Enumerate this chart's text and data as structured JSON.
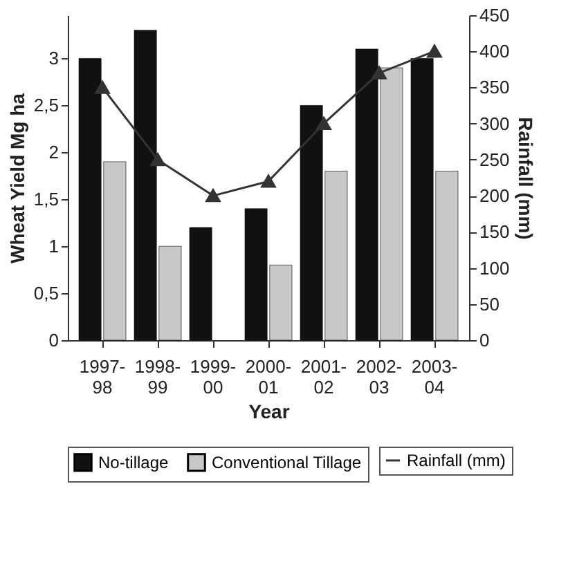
{
  "chart_data": {
    "type": "bar",
    "xlabel": "Year",
    "ylabel": "Wheat Yield  Mg ha",
    "y2label": "Rainfall (mm)",
    "categories": [
      "1997-98",
      "1998-99",
      "1999-00",
      "2000-01",
      "2001-02",
      "2002-03",
      "2003-04"
    ],
    "series": [
      {
        "name": "No-tillage",
        "color": "#111111",
        "values": [
          3.0,
          3.3,
          1.2,
          1.4,
          2.5,
          3.1,
          3.0
        ]
      },
      {
        "name": "Conventional Tillage",
        "color": "#c8c8c8",
        "values": [
          1.9,
          1.0,
          null,
          0.8,
          1.8,
          2.9,
          1.8
        ]
      },
      {
        "name": "Rainfall (mm)",
        "type": "line",
        "axis": "y2",
        "color": "#333333",
        "marker": "triangle",
        "values": [
          350,
          250,
          200,
          220,
          300,
          370,
          400
        ]
      }
    ],
    "ylim": [
      0,
      3.46
    ],
    "yticks": [
      0,
      {
        "value": 0.5,
        "label": "0,5"
      },
      1,
      {
        "value": 1.5,
        "label": "1,5"
      },
      2,
      {
        "value": 2.5,
        "label": "2,5"
      },
      3
    ],
    "y2lim": [
      0,
      450
    ],
    "y2ticks": [
      0,
      50,
      100,
      150,
      200,
      250,
      300,
      350,
      400,
      450
    ],
    "grid": false,
    "legend": "bottom"
  }
}
